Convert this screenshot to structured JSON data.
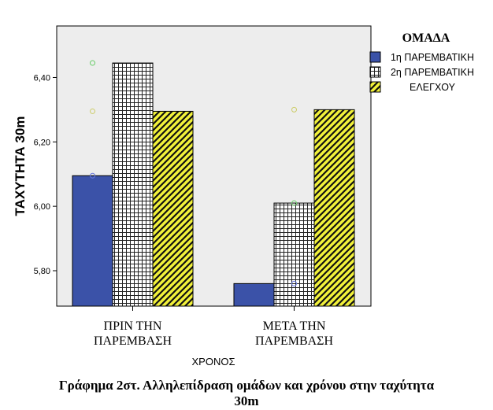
{
  "chart_data": {
    "type": "bar",
    "categories": [
      "ΠΡΙΝ ΤΗΝ ΠΑΡΕΜΒΑΣΗ",
      "ΜΕΤΑ ΤΗΝ ΠΑΡΕΜΒΑΣΗ"
    ],
    "category_lines": [
      [
        "ΠΡΙΝ ΤΗΝ",
        "ΠΑΡΕΜΒΑΣΗ"
      ],
      [
        "ΜΕΤΑ ΤΗΝ",
        "ΠΑΡΕΜΒΑΣΗ"
      ]
    ],
    "series": [
      {
        "name": "1η ΠΑΡΕΜΒΑΤΙΚΗ",
        "values": [
          6.095,
          5.76
        ],
        "color": "#3b52a8",
        "pattern": "solid"
      },
      {
        "name": "2η ΠΑΡΕΜΒΑΤΙΚΗ",
        "values": [
          6.445,
          6.01
        ],
        "color": "#ffffff",
        "pattern": "grid"
      },
      {
        "name": "ΕΛΕΓΧΟΥ",
        "values": [
          6.295,
          6.3
        ],
        "color": "#f2f23a",
        "pattern": "diagonal"
      }
    ],
    "outlier_points": [
      {
        "category": 0,
        "series": 0,
        "value": 6.445,
        "color": "#66cc66"
      },
      {
        "category": 0,
        "series": 0,
        "value": 6.295,
        "color": "#cccc66"
      },
      {
        "category": 0,
        "series": 0,
        "value": 6.095,
        "color": "#6677dd"
      },
      {
        "category": 1,
        "series": 1,
        "value": 6.3,
        "color": "#cccc66"
      },
      {
        "category": 1,
        "series": 1,
        "value": 6.01,
        "color": "#66cc66"
      },
      {
        "category": 1,
        "series": 1,
        "value": 5.76,
        "color": "#6677dd"
      }
    ],
    "ylabel": "ΤΑΧΥΤΗΤΑ 30m",
    "xlabel": "ΧΡΟΝΟΣ",
    "ylim": [
      5.69,
      6.56
    ],
    "yticks": [
      5.8,
      6.0,
      6.2,
      6.4
    ],
    "ytick_labels": [
      "5,80",
      "6,00",
      "6,20",
      "6,40"
    ],
    "legend_title": "ΟΜΑΔΑ",
    "legend_position": "right",
    "plot_background": "#ededed"
  },
  "caption": {
    "line1": "Γράφημα 2στ. Αλληλεπίδραση ομάδων και χρόνου στην ταχύτητα",
    "line2": "30m"
  }
}
